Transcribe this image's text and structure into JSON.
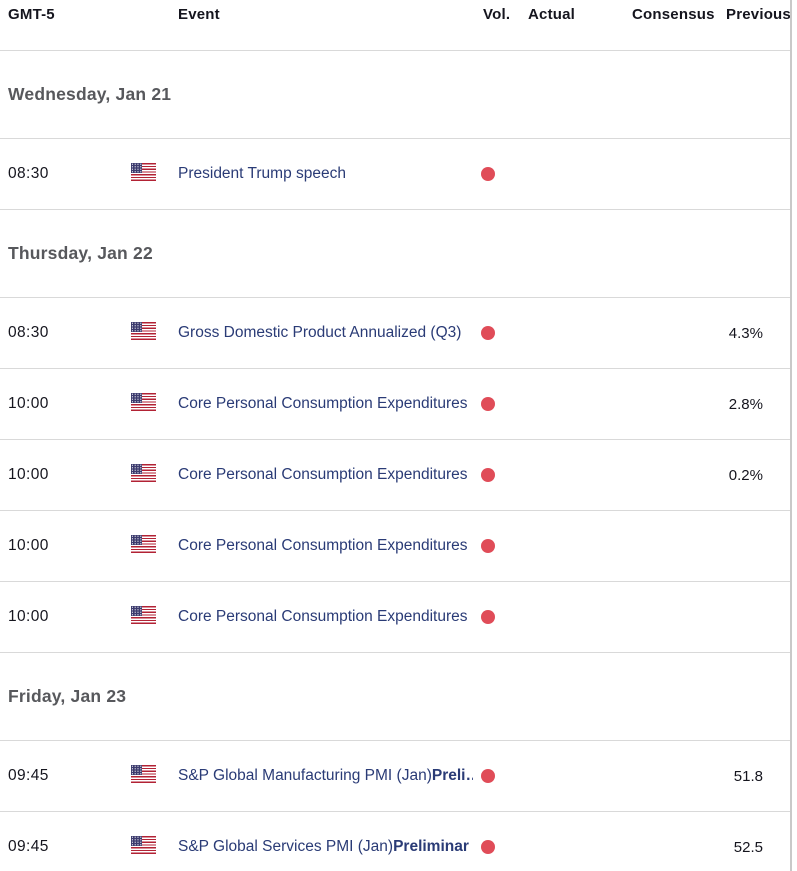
{
  "table": {
    "columns": {
      "gmt": "GMT-5",
      "event": "Event",
      "vol": "Vol.",
      "actual": "Actual",
      "consensus": "Consensus",
      "previous": "Previous"
    },
    "sections": [
      {
        "label": "Wednesday, Jan 21",
        "rows": [
          {
            "time": "08:30",
            "country": "United States",
            "event": "President Trump speech",
            "actual": "",
            "consensus": "",
            "previous": ""
          }
        ]
      },
      {
        "label": "Thursday, Jan 22",
        "rows": [
          {
            "time": "08:30",
            "country": "United States",
            "event": "Gross Domestic Product Annualized (Q3)",
            "actual": "",
            "consensus": "",
            "previous": "4.3%"
          },
          {
            "time": "10:00",
            "country": "United States",
            "event": "Core Personal Consumption Expenditures …",
            "actual": "",
            "consensus": "",
            "previous": "2.8%"
          },
          {
            "time": "10:00",
            "country": "United States",
            "event": "Core Personal Consumption Expenditures …",
            "actual": "",
            "consensus": "",
            "previous": "0.2%"
          },
          {
            "time": "10:00",
            "country": "United States",
            "event": "Core Personal Consumption Expenditures …",
            "actual": "",
            "consensus": "",
            "previous": ""
          },
          {
            "time": "10:00",
            "country": "United States",
            "event": "Core Personal Consumption Expenditures …",
            "actual": "",
            "consensus": "",
            "previous": ""
          }
        ]
      },
      {
        "label": "Friday, Jan 23",
        "rows": [
          {
            "time": "09:45",
            "country": "United States",
            "event": "S&P Global Manufacturing PMI (Jan)",
            "event_bold": "Preli…",
            "actual": "",
            "consensus": "",
            "previous": "51.8"
          },
          {
            "time": "09:45",
            "country": "United States",
            "event": "S&P Global Services PMI (Jan)",
            "event_bold": "Preliminar",
            "actual": "",
            "consensus": "",
            "previous": "52.5"
          }
        ]
      }
    ],
    "icons": {
      "country_flag": "us-flag-icon",
      "volatility": "volatility-dot-icon"
    },
    "colors": {
      "event_link": "#2a3b76",
      "volatility_dot": "#e04c58",
      "day_header_text": "#57585c",
      "header_text": "#15151e",
      "divider": "#d9d9d9",
      "flag_blue": "#3c3b6e",
      "flag_red": "#b22234"
    }
  }
}
